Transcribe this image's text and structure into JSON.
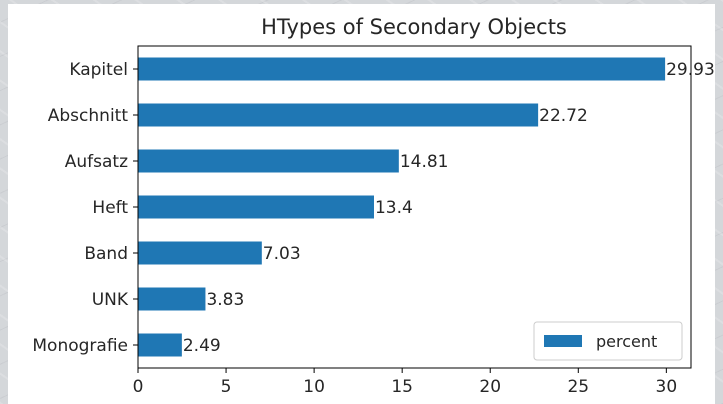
{
  "chart_data": {
    "type": "bar",
    "orientation": "horizontal",
    "title": "HTypes of Secondary Objects",
    "xlabel": "",
    "ylabel": "",
    "categories": [
      "Kapitel",
      "Abschnitt",
      "Aufsatz",
      "Heft",
      "Band",
      "UNK",
      "Monografie"
    ],
    "series": [
      {
        "name": "percent",
        "values": [
          29.93,
          22.72,
          14.81,
          13.4,
          7.03,
          3.83,
          2.49
        ],
        "value_labels": [
          "29.93",
          "22.72",
          "14.81",
          "13.4",
          "7.03",
          "3.83",
          "2.49"
        ],
        "color": "#1f77b4"
      }
    ],
    "xlim": [
      0,
      31.4
    ],
    "xticks": [
      0,
      5,
      10,
      15,
      20,
      25,
      30
    ],
    "xtick_labels": [
      "0",
      "5",
      "10",
      "15",
      "20",
      "25",
      "30"
    ],
    "grid": false,
    "legend": {
      "position": "lower-right",
      "entries": [
        "percent"
      ]
    }
  }
}
